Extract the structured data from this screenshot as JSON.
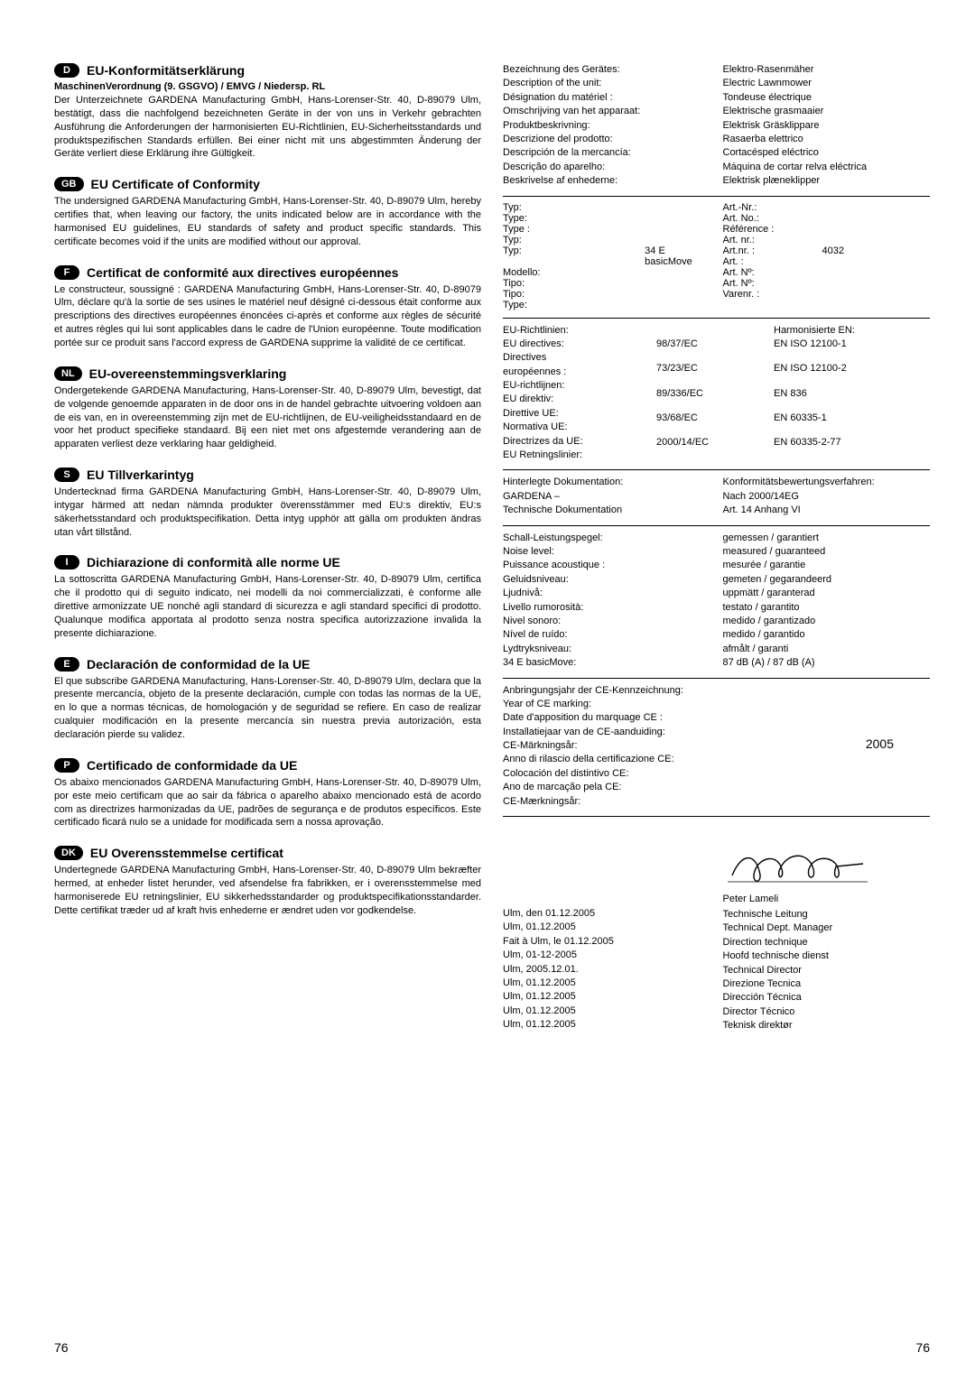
{
  "left": [
    {
      "badge": "D",
      "title": "EU-Konformitätserklärung",
      "sub": "MaschinenVerordnung (9. GSGVO) / EMVG / Niedersp. RL",
      "body": "Der Unterzeichnete GARDENA Manufacturing GmbH, Hans-Lorenser-Str. 40, D-89079 Ulm, bestätigt, dass die nachfolgend bezeichneten Geräte in der von uns in Verkehr gebrachten Ausführung die Anforderungen der harmonisierten EU-Richtlinien, EU-Sicherheitsstandards und produktspezifischen Standards erfüllen. Bei einer nicht mit uns abgestimmten Änderung der Geräte verliert diese Erklärung ihre Gültigkeit."
    },
    {
      "badge": "GB",
      "title": "EU Certificate of Conformity",
      "body": "The undersigned GARDENA Manufacturing GmbH, Hans-Lorenser-Str. 40, D-89079 Ulm, hereby certifies that, when leaving our factory, the units indicated below are in accordance with the harmonised EU guidelines, EU standards of safety and product specific standards. This certificate becomes void if the units are modified without our approval."
    },
    {
      "badge": "F",
      "title": "Certificat de conformité aux directives européennes",
      "body": "Le constructeur, soussigné : GARDENA Manufacturing GmbH, Hans-Lorenser-Str. 40, D-89079 Ulm, déclare qu'à la sortie de ses usines le matériel neuf désigné ci-dessous était conforme aux prescriptions des directives européennes énoncées ci-après et conforme aux règles de sécurité et autres règles qui lui sont applicables dans le cadre de l'Union européenne. Toute modification portée sur ce produit sans l'accord express de GARDENA supprime la validité de ce certificat."
    },
    {
      "badge": "NL",
      "title": "EU-overeenstemmingsverklaring",
      "body": "Ondergetekende GARDENA Manufacturing, Hans-Lorenser-Str. 40, D-89079 Ulm, bevestigt, dat de volgende genoemde apparaten in de door ons in de handel gebrachte uitvoering voldoen aan de eis van, en in overeenstemming zijn met de EU-richtlijnen, de EU-veiligheidsstandaard en de voor het product specifieke standaard. Bij een niet met ons afgestemde verandering aan de apparaten verliest deze verklaring haar geldigheid."
    },
    {
      "badge": "S",
      "title": "EU Tillverkarintyg",
      "body": "Undertecknad firma GARDENA Manufacturing GmbH, Hans-Lorenser-Str. 40, D-89079 Ulm, intygar härmed att nedan nämnda produkter överensstämmer med EU:s direktiv, EU:s säkerhetsstandard och produktspecifikation. Detta intyg upphör att gälla om produkten ändras utan vårt tillstånd."
    },
    {
      "badge": "I",
      "title": "Dichiarazione di conformità alle norme UE",
      "body": "La sottoscritta GARDENA Manufacturing GmbH, Hans-Lorenser-Str. 40, D-89079 Ulm, certifica che il prodotto qui di seguito indicato, nei modelli da noi commercializzati, è conforme alle direttive armonizzate UE nonché agli standard di sicurezza e agli standard specifici di prodotto. Qualunque modifica apportata al prodotto senza nostra specifica autorizzazione invalida la presente dichiarazione."
    },
    {
      "badge": "E",
      "title": "Declaración de conformidad de la UE",
      "body": "El que subscribe GARDENA Manufacturing, Hans-Lorenser-Str. 40, D-89079 Ulm, declara que la presente mercancía, objeto de la presente declaración, cumple con todas las normas de la UE, en lo que a normas técnicas, de homologación y de seguridad se refiere. En caso de realizar cualquier modificación en la presente mercancía sin nuestra previa autorización, esta declaración pierde su validez."
    },
    {
      "badge": "P",
      "title": "Certificado de conformidade da UE",
      "body": "Os abaixo mencionados GARDENA Manufacturing GmbH, Hans-Lorenser-Str. 40, D-89079 Ulm, por este meio certificam que ao sair da fábrica o aparelho abaixo mencionado está de acordo com as directrizes harmonizadas da UE, padrões de segurança e de produtos específicos. Este certificado ficará nulo se a unidade for modificada sem a nossa aprovação."
    },
    {
      "badge": "DK",
      "title": "EU Overensstemmelse certificat",
      "body": "Undertegnede GARDENA Manufacturing GmbH, Hans-Lorenser-Str. 40, D-89079 Ulm bekræfter hermed, at enheder listet herunder, ved afsendelse fra fabrikken, er i overensstemmelse med harmoniserede EU retningslinier, EU sikkerhedsstandarder og produktspecifikationsstandarder. Dette certifikat træder ud af kraft hvis enhederne er ændret uden vor godkendelse."
    }
  ],
  "desc": {
    "labels": [
      "Bezeichnung des Gerätes:",
      "Description of the unit:",
      "Désignation du matériel :",
      "Omschrijving van het apparaat:",
      "Produktbeskrivning:",
      "Descrizione del prodotto:",
      "Descripción de la mercancía:",
      "Descrição do aparelho:",
      "Beskrivelse af enhederne:"
    ],
    "values": [
      "Elektro-Rasenmäher",
      "Electric Lawnmower",
      "Tondeuse électrique",
      "Elektrische grasmaaier",
      "Elektrisk Gräsklippare",
      "Rasaerba elettrico",
      "Cortacésped eléctrico",
      "Máquina de cortar relva eléctrica",
      "Elektrisk plæneklipper"
    ]
  },
  "type": {
    "labels": [
      "Typ:",
      "Type:",
      "Type :",
      "Typ:",
      "Typ:",
      "Modello:",
      "Tipo:",
      "Tipo:",
      "Type:"
    ],
    "value": "34 E basicMove",
    "art_labels": [
      "Art.-Nr.:",
      "Art. No.:",
      "Référence :",
      "Art. nr.:",
      "Art.nr. :",
      "Art. :",
      "Art. Nº:",
      "Art. Nº:",
      "Varenr. :"
    ],
    "art_value": "4032"
  },
  "directives": {
    "left_labels": [
      "EU-Richtlinien:",
      "EU directives:",
      "Directives",
      "européennes :",
      "EU-richtlijnen:",
      "EU direktiv:",
      "Direttive UE:",
      "Normativa UE:",
      "Directrizes da UE:",
      "EU Retningslinier:"
    ],
    "dir_vals": [
      "98/37/EC",
      "73/23/EC",
      "89/336/EC",
      "93/68/EC",
      "2000/14/EC"
    ],
    "en_label": "Harmonisierte EN:",
    "en_vals": [
      "EN ISO 12100-1",
      "EN ISO 12100-2",
      "EN 836",
      "EN 60335-1",
      "EN 60335-2-77"
    ]
  },
  "docs": {
    "l1": "Hinterlegte Dokumentation:",
    "l2": "GARDENA –",
    "l3": "Technische Dokumentation",
    "r1": "Konformitätsbewertungsverfahren:",
    "r2": "Nach 2000/14EG",
    "r3": "Art. 14 Anhang VI"
  },
  "noise": {
    "labels": [
      "Schall-Leistungspegel:",
      "Noise level:",
      "Puissance acoustique :",
      "Geluidsniveau:",
      "Ljudnivå:",
      "Livello rumorosità:",
      "Nivel sonoro:",
      "Nível de ruído:",
      "Lydtryksniveau:",
      "34 E basicMove:"
    ],
    "values": [
      "gemessen / garantiert",
      "measured / guaranteed",
      "mesurée / garantie",
      "gemeten / gegarandeerd",
      "uppmätt / garanterad",
      "testato / garantito",
      "medido / garantizado",
      "medido / garantido",
      "afmålt / garanti",
      "87 dB (A) / 87 dB (A)"
    ]
  },
  "ce": {
    "labels": [
      "Anbringungsjahr der CE-Kennzeichnung:",
      "Year of CE marking:",
      "Date d'apposition du marquage CE :",
      "Installatiejaar van de CE-aanduiding:",
      "CE-Märkningsår:",
      "Anno di rilascio della certificazione CE:",
      "Colocación del distintivo CE:",
      "Ano de marcação pela CE:",
      "CE-Mærkningsår:"
    ],
    "value": "2005"
  },
  "sign": {
    "dates": [
      "Ulm, den 01.12.2005",
      "Ulm, 01.12.2005",
      "Fait à Ulm, le 01.12.2005",
      "Ulm, 01-12-2005",
      "Ulm, 2005.12.01.",
      "Ulm, 01.12.2005",
      "Ulm, 01.12.2005",
      "Ulm, 01.12.2005",
      "Ulm, 01.12.2005"
    ],
    "name": "Peter Lameli",
    "roles": [
      "Technische Leitung",
      "Technical Dept. Manager",
      "Direction technique",
      "Hoofd technische dienst",
      "Technical Director",
      "Direzione Tecnica",
      "Dirección Técnica",
      "Director Técnico",
      "Teknisk direktør"
    ]
  },
  "page": "76"
}
